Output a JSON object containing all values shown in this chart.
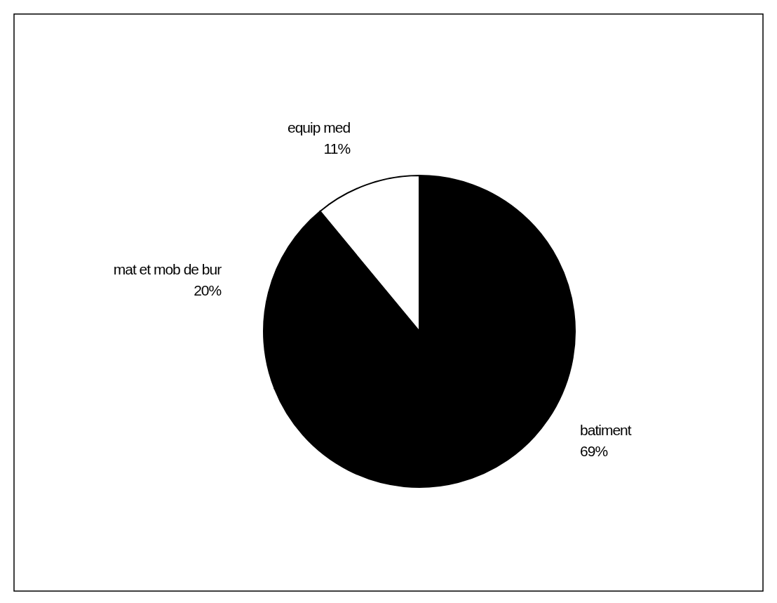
{
  "chart_data": {
    "type": "pie",
    "categories": [
      "batiment",
      "mat et mob de bur",
      "equip med"
    ],
    "values": [
      69,
      20,
      11
    ],
    "colors": [
      "#000000",
      "#000000",
      "#ffffff"
    ],
    "value_labels": [
      "69%",
      "20%",
      "11%"
    ]
  }
}
